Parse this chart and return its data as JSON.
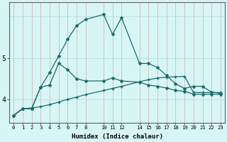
{
  "xlabel": "Humidex (Indice chaleur)",
  "background_color": "#d8f5f5",
  "grid_color_h": "#b0dcdc",
  "grid_color_v": "#c8b0b0",
  "line_color": "#1a6b6b",
  "x_ticks": [
    0,
    1,
    2,
    3,
    4,
    5,
    6,
    7,
    8,
    10,
    11,
    12,
    14,
    15,
    16,
    17,
    18,
    19,
    20,
    21,
    22,
    23
  ],
  "line1_x": [
    0,
    1,
    2,
    3,
    4,
    5,
    6,
    7,
    8,
    10,
    11,
    12,
    14,
    15,
    16,
    17,
    18,
    19,
    20,
    21,
    22,
    23
  ],
  "line1_y": [
    3.62,
    3.78,
    3.78,
    4.3,
    4.35,
    4.87,
    4.72,
    4.5,
    4.45,
    4.45,
    4.52,
    4.45,
    4.42,
    4.35,
    4.32,
    4.28,
    4.22,
    4.2,
    4.13,
    4.13,
    4.13,
    4.13
  ],
  "line2_x": [
    0,
    1,
    2,
    3,
    4,
    5,
    6,
    7,
    8,
    10,
    11,
    12,
    14,
    15,
    16,
    17,
    18,
    19,
    20,
    21,
    22,
    23
  ],
  "line2_y": [
    3.62,
    3.78,
    3.78,
    4.3,
    4.65,
    5.05,
    5.45,
    5.78,
    5.93,
    6.05,
    5.57,
    5.97,
    4.87,
    4.87,
    4.77,
    4.58,
    4.38,
    4.27,
    4.32,
    4.32,
    4.18,
    4.15
  ],
  "line3_x": [
    0,
    1,
    2,
    3,
    4,
    5,
    6,
    7,
    8,
    10,
    11,
    12,
    14,
    15,
    16,
    17,
    18,
    19,
    20,
    21,
    22,
    23
  ],
  "line3_y": [
    3.62,
    3.78,
    3.8,
    3.83,
    3.88,
    3.94,
    4.01,
    4.06,
    4.12,
    4.22,
    4.27,
    4.32,
    4.43,
    4.48,
    4.52,
    4.54,
    4.55,
    4.56,
    4.17,
    4.17,
    4.17,
    4.17
  ],
  "ylim": [
    3.45,
    6.35
  ],
  "yticks": [
    4,
    5
  ],
  "ytick_labels": [
    "4",
    "5"
  ]
}
